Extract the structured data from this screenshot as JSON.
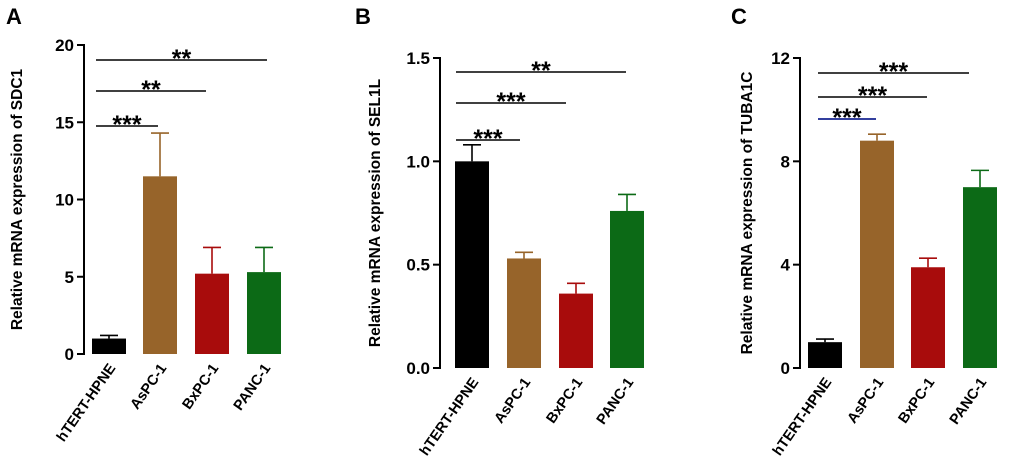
{
  "chart_data": [
    {
      "panel": "A",
      "type": "bar",
      "ylabel": "Relative mRNA expression of SDC1",
      "categories": [
        "hTERT-HPNE",
        "AsPC-1",
        "BxPC-1",
        "PANC-1"
      ],
      "values": [
        1.0,
        11.5,
        5.2,
        5.3
      ],
      "errors": [
        0.2,
        2.8,
        1.7,
        1.6
      ],
      "ylim": [
        0,
        20
      ],
      "yticks": [
        0,
        5,
        10,
        15,
        20
      ],
      "ytick_labels": [
        "0",
        "5",
        "10",
        "15",
        "20"
      ],
      "colors": [
        "#000000",
        "#97642a",
        "#a80c0c",
        "#0c6a16"
      ],
      "comparisons": [
        {
          "from": 0,
          "to": 1,
          "label": "***"
        },
        {
          "from": 0,
          "to": 2,
          "label": "**"
        },
        {
          "from": 0,
          "to": 3,
          "label": "**"
        }
      ]
    },
    {
      "panel": "B",
      "type": "bar",
      "ylabel": "Relative mRNA expression of SEL1L",
      "categories": [
        "hTERT-HPNE",
        "AsPC-1",
        "BxPC-1",
        "PANC-1"
      ],
      "values": [
        1.0,
        0.53,
        0.36,
        0.76
      ],
      "errors": [
        0.08,
        0.03,
        0.05,
        0.08
      ],
      "ylim": [
        0,
        1.5
      ],
      "yticks": [
        0,
        0.5,
        1.0,
        1.5
      ],
      "ytick_labels": [
        "0.0",
        "0.5",
        "1.0",
        "1.5"
      ],
      "colors": [
        "#000000",
        "#97642a",
        "#a80c0c",
        "#0c6a16"
      ],
      "comparisons": [
        {
          "from": 0,
          "to": 1,
          "label": "***"
        },
        {
          "from": 0,
          "to": 2,
          "label": "***"
        },
        {
          "from": 0,
          "to": 3,
          "label": "**"
        }
      ]
    },
    {
      "panel": "C",
      "type": "bar",
      "ylabel": "Relative mRNA expression of TUBA1C",
      "categories": [
        "hTERT-HPNE",
        "AsPC-1",
        "BxPC-1",
        "PANC-1"
      ],
      "values": [
        1.0,
        8.8,
        3.9,
        7.0
      ],
      "errors": [
        0.12,
        0.25,
        0.35,
        0.65
      ],
      "ylim": [
        0,
        12
      ],
      "yticks": [
        0,
        4,
        8,
        12
      ],
      "ytick_labels": [
        "0",
        "4",
        "8",
        "12"
      ],
      "colors": [
        "#000000",
        "#97642a",
        "#a80c0c",
        "#0c6a16"
      ],
      "comparisons": [
        {
          "from": 0,
          "to": 1,
          "label": "***"
        },
        {
          "from": 0,
          "to": 2,
          "label": "***"
        },
        {
          "from": 0,
          "to": 3,
          "label": "***"
        }
      ]
    }
  ]
}
